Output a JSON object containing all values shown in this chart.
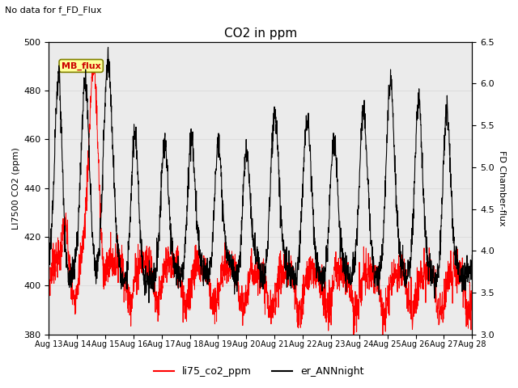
{
  "title": "CO2 in ppm",
  "subtitle": "No data for f_FD_Flux",
  "ylabel_left": "LI7500 CO2 (ppm)",
  "ylabel_right": "FD Chamber-flux",
  "ylim_left": [
    380,
    500
  ],
  "ylim_right": [
    3.0,
    6.5
  ],
  "yticks_left": [
    380,
    400,
    420,
    440,
    460,
    480,
    500
  ],
  "yticks_right": [
    3.0,
    3.5,
    4.0,
    4.5,
    5.0,
    5.5,
    6.0,
    6.5
  ],
  "xtick_labels": [
    "Aug 13",
    "Aug 14",
    "Aug 15",
    "Aug 16",
    "Aug 17",
    "Aug 18",
    "Aug 19",
    "Aug 20",
    "Aug 21",
    "Aug 22",
    "Aug 23",
    "Aug 24",
    "Aug 25",
    "Aug 26",
    "Aug 27",
    "Aug 28"
  ],
  "legend_line1_color": "#ff0000",
  "legend_line1_label": "li75_co2_ppm",
  "legend_line2_color": "#000000",
  "legend_line2_label": "er_ANNnight",
  "mb_flux_box_color": "#ffff99",
  "mb_flux_text_color": "#cc0000",
  "mb_flux_label": "MB_flux",
  "grid_color": "#dddddd",
  "background_color": "#ebebeb",
  "plot_bg_color": "#ffffff",
  "figsize": [
    6.4,
    4.8
  ],
  "dpi": 100
}
